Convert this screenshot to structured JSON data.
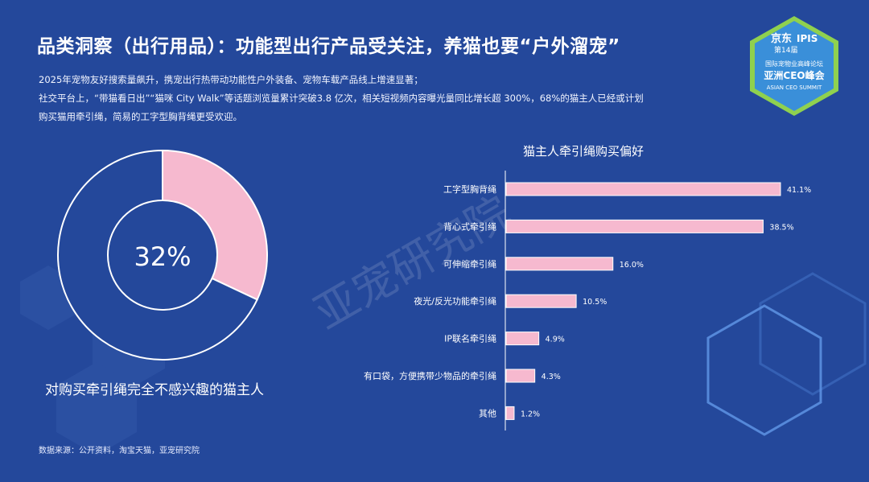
{
  "title": "品类洞察（出行用品）：功能型出行产品受关注，养猫也要“户外溜宠”",
  "description": [
    "2025年宠物友好搜索量飙升，携宠出行热带动功能性户外装备、宠物车载产品线上增速显著；",
    "社交平台上，“带猫看日出”“猫咪 City Walk”等话题浏览量累计突破3.8 亿次，相关短视频内容曝光量同比增长超 300%，68%的猫主人已经或计划",
    "购买猫用牵引绳，简易的工字型胸背绳更受欢迎。"
  ],
  "source": "数据来源：公开资料，淘宝天猫，亚宠研究院",
  "watermark": "亚宠研究院",
  "badge": {
    "brand": "京东",
    "edition": "第14届",
    "ipis": "IPIS",
    "line1": "国际宠物业高峰论坛",
    "line2": "亚洲CEO峰会",
    "line3": "ASIAN CEO SUMMIT"
  },
  "colors": {
    "background": "#24489b",
    "bar": "#f6b9cf",
    "donut_highlight": "#f6b9cf",
    "donut_rest": "#24489b",
    "badge_green": "#8fd14f"
  },
  "chart_data": [
    {
      "type": "pie",
      "center_label": "32%",
      "caption": "对购买牵引绳完全不感兴趣的猫主人",
      "values": [
        32,
        68
      ],
      "labels": [
        "",
        ""
      ]
    },
    {
      "type": "bar",
      "orientation": "horizontal",
      "title": "猫主人牵引绳购买偏好",
      "categories": [
        "工字型胸背绳",
        "背心式牵引绳",
        "可伸缩牵引绳",
        "夜光/反光功能牵引绳",
        "IP联名牵引绳",
        "有口袋，方便携带少物品的牵引绳",
        "其他"
      ],
      "values": [
        41.1,
        38.5,
        16.0,
        10.5,
        4.9,
        4.3,
        1.2
      ],
      "value_labels": [
        "41.1%",
        "38.5%",
        "16.0%",
        "10.5%",
        "4.9%",
        "4.3%",
        "1.2%"
      ],
      "xlim": [
        0,
        41.1
      ]
    }
  ]
}
